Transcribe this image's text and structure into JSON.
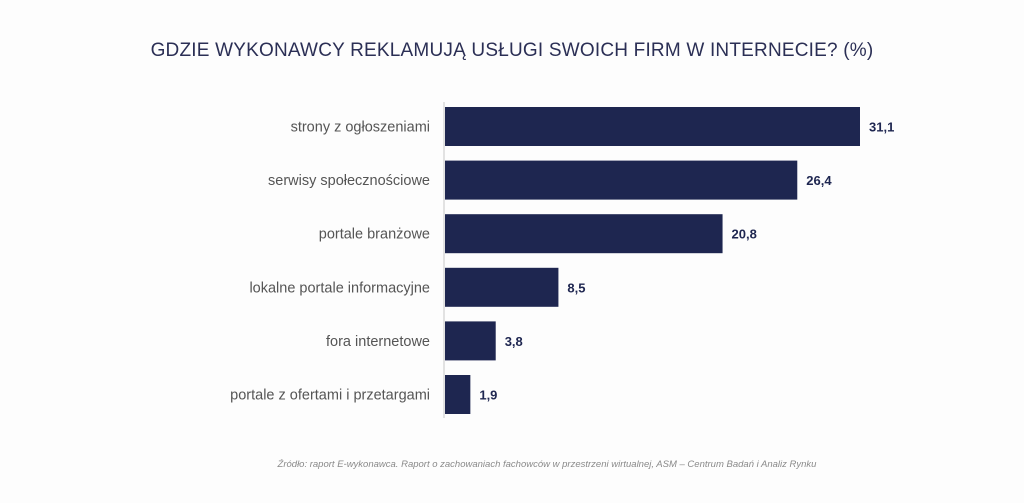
{
  "chart_data": {
    "type": "bar",
    "orientation": "horizontal",
    "title": "GDZIE WYKONAWCY REKLAMUJĄ USŁUGI SWOICH FIRM W INTERNECIE? (%)",
    "categories": [
      "strony z ogłoszeniami",
      "serwisy społecznościowe",
      "portale branżowe",
      "lokalne portale informacyjne",
      "fora internetowe",
      "portale z ofertami i przetargami"
    ],
    "values": [
      31.1,
      26.4,
      20.8,
      8.5,
      3.8,
      1.9
    ],
    "value_labels": [
      "31,1",
      "26,4",
      "20,8",
      "8,5",
      "3,8",
      "1,9"
    ],
    "xlim": [
      0,
      31.1
    ],
    "grid": false,
    "legend": "none",
    "bar_color": "#1e2650"
  },
  "source": "Źródło: raport E-wykonawca. Raport o zachowaniach fachowców w przestrzeni wirtualnej, ASM – Centrum Badań i Analiz Rynku"
}
